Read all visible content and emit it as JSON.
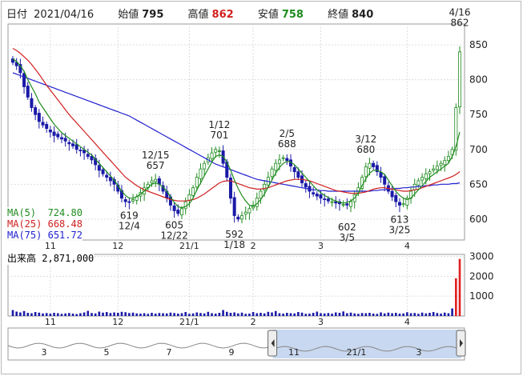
{
  "header": {
    "date_label": "日付",
    "date": "2021/04/16",
    "open_label": "始値",
    "open": "795",
    "high_label": "高値",
    "high": "862",
    "low_label": "安値",
    "low": "758",
    "close_label": "終値",
    "close": "840"
  },
  "colors": {
    "up": "#1e8b1e",
    "down": "#1a1aa8",
    "ma5": "#1e8b1e",
    "ma25": "#d02020",
    "ma75": "#2020d0",
    "volume": "#1a1aa8",
    "volume_highlight": "#e02020",
    "high_val": "#d02020",
    "low_val": "#1e8b1e"
  },
  "ma_legend": [
    {
      "name": "MA(5)",
      "value": "724.80"
    },
    {
      "name": "MA(25)",
      "value": "668.48"
    },
    {
      "name": "MA(75)",
      "value": "651.72"
    }
  ],
  "volume_legend": {
    "label": "出来高",
    "value": "2,871,000"
  },
  "chart_data": [
    {
      "type": "candlestick",
      "title": "",
      "ylim": [
        570,
        880
      ],
      "yticks": [
        600,
        650,
        700,
        750,
        800,
        850
      ],
      "grid": true,
      "x_date_ticks": [
        {
          "label": "11",
          "index": 10
        },
        {
          "label": "12",
          "index": 28
        },
        {
          "label": "21/1",
          "index": 47
        },
        {
          "label": "2",
          "index": 64
        },
        {
          "label": "3",
          "index": 82
        },
        {
          "label": "4",
          "index": 105
        }
      ],
      "annotations": [
        {
          "date": "12/4",
          "value": 619,
          "index": 31,
          "pos": "below"
        },
        {
          "date": "12/15",
          "value": 657,
          "index": 38,
          "pos": "above"
        },
        {
          "date": "12/22",
          "value": 605,
          "index": 43,
          "pos": "below"
        },
        {
          "date": "1/12",
          "value": 701,
          "index": 55,
          "pos": "above"
        },
        {
          "date": "1/18",
          "value": 592,
          "index": 59,
          "pos": "below"
        },
        {
          "date": "2/5",
          "value": 688,
          "index": 73,
          "pos": "above"
        },
        {
          "date": "3/5",
          "value": 602,
          "index": 89,
          "pos": "below"
        },
        {
          "date": "3/12",
          "value": 680,
          "index": 94,
          "pos": "above"
        },
        {
          "date": "3/25",
          "value": 613,
          "index": 103,
          "pos": "below"
        },
        {
          "date": "4/16",
          "value": 862,
          "index": 119,
          "pos": "above"
        }
      ],
      "close_series": [
        825,
        820,
        810,
        790,
        775,
        760,
        750,
        740,
        735,
        730,
        725,
        720,
        718,
        715,
        712,
        708,
        705,
        700,
        698,
        695,
        690,
        685,
        678,
        670,
        665,
        660,
        655,
        650,
        640,
        630,
        625,
        624,
        628,
        632,
        638,
        645,
        650,
        655,
        657,
        650,
        640,
        630,
        620,
        612,
        608,
        615,
        625,
        635,
        645,
        660,
        672,
        680,
        688,
        695,
        700,
        698,
        680,
        660,
        630,
        605,
        600,
        605,
        610,
        615,
        620,
        630,
        640,
        650,
        660,
        672,
        680,
        685,
        688,
        684,
        676,
        668,
        660,
        652,
        646,
        640,
        636,
        633,
        630,
        628,
        626,
        625,
        623,
        622,
        621,
        620,
        625,
        635,
        645,
        660,
        675,
        680,
        675,
        668,
        660,
        650,
        640,
        632,
        625,
        620,
        622,
        630,
        640,
        650,
        655,
        660,
        665,
        668,
        672,
        676,
        680,
        684,
        690,
        700,
        760,
        840
      ],
      "ma5": [
        830,
        826,
        820,
        812,
        800,
        790,
        780,
        768,
        760,
        752,
        744,
        736,
        730,
        724,
        720,
        716,
        712,
        708,
        704,
        700,
        696,
        692,
        686,
        680,
        674,
        668,
        662,
        656,
        648,
        640,
        634,
        630,
        630,
        632,
        636,
        640,
        645,
        650,
        652,
        650,
        646,
        640,
        632,
        624,
        618,
        616,
        618,
        622,
        630,
        642,
        652,
        662,
        672,
        682,
        690,
        692,
        690,
        682,
        670,
        656,
        644,
        634,
        626,
        620,
        618,
        622,
        628,
        636,
        646,
        656,
        666,
        674,
        680,
        683,
        682,
        678,
        672,
        666,
        660,
        654,
        648,
        642,
        638,
        634,
        631,
        628,
        626,
        624,
        623,
        624,
        626,
        630,
        638,
        648,
        658,
        666,
        670,
        670,
        668,
        664,
        656,
        648,
        640,
        634,
        630,
        628,
        630,
        636,
        642,
        648,
        654,
        660,
        664,
        668,
        672,
        676,
        680,
        690,
        704,
        725
      ],
      "ma25": [
        845,
        842,
        838,
        833,
        828,
        822,
        815,
        808,
        800,
        792,
        785,
        778,
        771,
        764,
        757,
        750,
        744,
        738,
        732,
        726,
        720,
        714,
        708,
        702,
        696,
        690,
        684,
        678,
        672,
        666,
        660,
        656,
        652,
        648,
        645,
        642,
        640,
        638,
        636,
        634,
        632,
        630,
        628,
        627,
        626,
        626,
        626,
        627,
        628,
        630,
        633,
        636,
        640,
        644,
        648,
        652,
        654,
        655,
        655,
        653,
        651,
        649,
        647,
        645,
        644,
        643,
        643,
        644,
        645,
        647,
        649,
        651,
        653,
        655,
        656,
        657,
        657,
        657,
        656,
        655,
        653,
        651,
        649,
        647,
        645,
        643,
        641,
        640,
        639,
        638,
        637,
        637,
        637,
        638,
        639,
        641,
        643,
        644,
        645,
        645,
        644,
        643,
        642,
        641,
        640,
        640,
        641,
        642,
        643,
        645,
        647,
        649,
        651,
        653,
        655,
        657,
        659,
        661,
        664,
        668
      ],
      "ma75": [
        810,
        808,
        806,
        804,
        802,
        800,
        798,
        796,
        794,
        792,
        790,
        788,
        786,
        784,
        782,
        780,
        778,
        776,
        774,
        772,
        770,
        768,
        766,
        764,
        762,
        760,
        758,
        756,
        754,
        752,
        750,
        748,
        745,
        742,
        739,
        736,
        733,
        730,
        727,
        724,
        721,
        718,
        715,
        712,
        709,
        706,
        703,
        700,
        697,
        694,
        691,
        688,
        685,
        682,
        679,
        677,
        675,
        673,
        671,
        669,
        667,
        665,
        663,
        661,
        659,
        657,
        656,
        655,
        654,
        653,
        652,
        651,
        650,
        649,
        648,
        647,
        646,
        645,
        644,
        643,
        642,
        642,
        641,
        641,
        640,
        640,
        640,
        640,
        640,
        640,
        640,
        640,
        640,
        640,
        640,
        640,
        641,
        641,
        642,
        642,
        643,
        643,
        644,
        644,
        645,
        645,
        646,
        646,
        647,
        647,
        648,
        648,
        649,
        649,
        650,
        650,
        650,
        651,
        651,
        652
      ],
      "volume": [
        300,
        220,
        180,
        250,
        160,
        140,
        200,
        170,
        130,
        150,
        120,
        160,
        140,
        110,
        130,
        150,
        120,
        100,
        140,
        180,
        260,
        150,
        130,
        220,
        170,
        200,
        150,
        180,
        160,
        210,
        190,
        150,
        170,
        130,
        120,
        140,
        110,
        160,
        120,
        150,
        140,
        130,
        170,
        150,
        120,
        140,
        200,
        110,
        130,
        180,
        150,
        130,
        210,
        140,
        120,
        160,
        300,
        210,
        160,
        180,
        130,
        170,
        110,
        120,
        200,
        140,
        160,
        130,
        210,
        180,
        250,
        140,
        120,
        160,
        140,
        130,
        200,
        170,
        110,
        120,
        160,
        220,
        140,
        130,
        150,
        120,
        180,
        160,
        230,
        140,
        170,
        130,
        110,
        150,
        140,
        160,
        120,
        110,
        180,
        130,
        170,
        140,
        160,
        120,
        130,
        190,
        140,
        150,
        110,
        170,
        130,
        160,
        200,
        150,
        120,
        170,
        140,
        380,
        1900,
        2871
      ],
      "volume_yticks": [
        1000,
        2000,
        3000
      ],
      "volume_ylim": [
        0,
        3100
      ],
      "volume_x_ticks": [
        {
          "label": "11",
          "index": 10
        },
        {
          "label": "12",
          "index": 28
        },
        {
          "label": "21/1",
          "index": 47
        },
        {
          "label": "2",
          "index": 64
        },
        {
          "label": "3",
          "index": 82
        },
        {
          "label": "4",
          "index": 105
        }
      ],
      "overview_ticks": [
        "3",
        "5",
        "7",
        "9",
        "11",
        "21/1",
        "3"
      ]
    }
  ]
}
